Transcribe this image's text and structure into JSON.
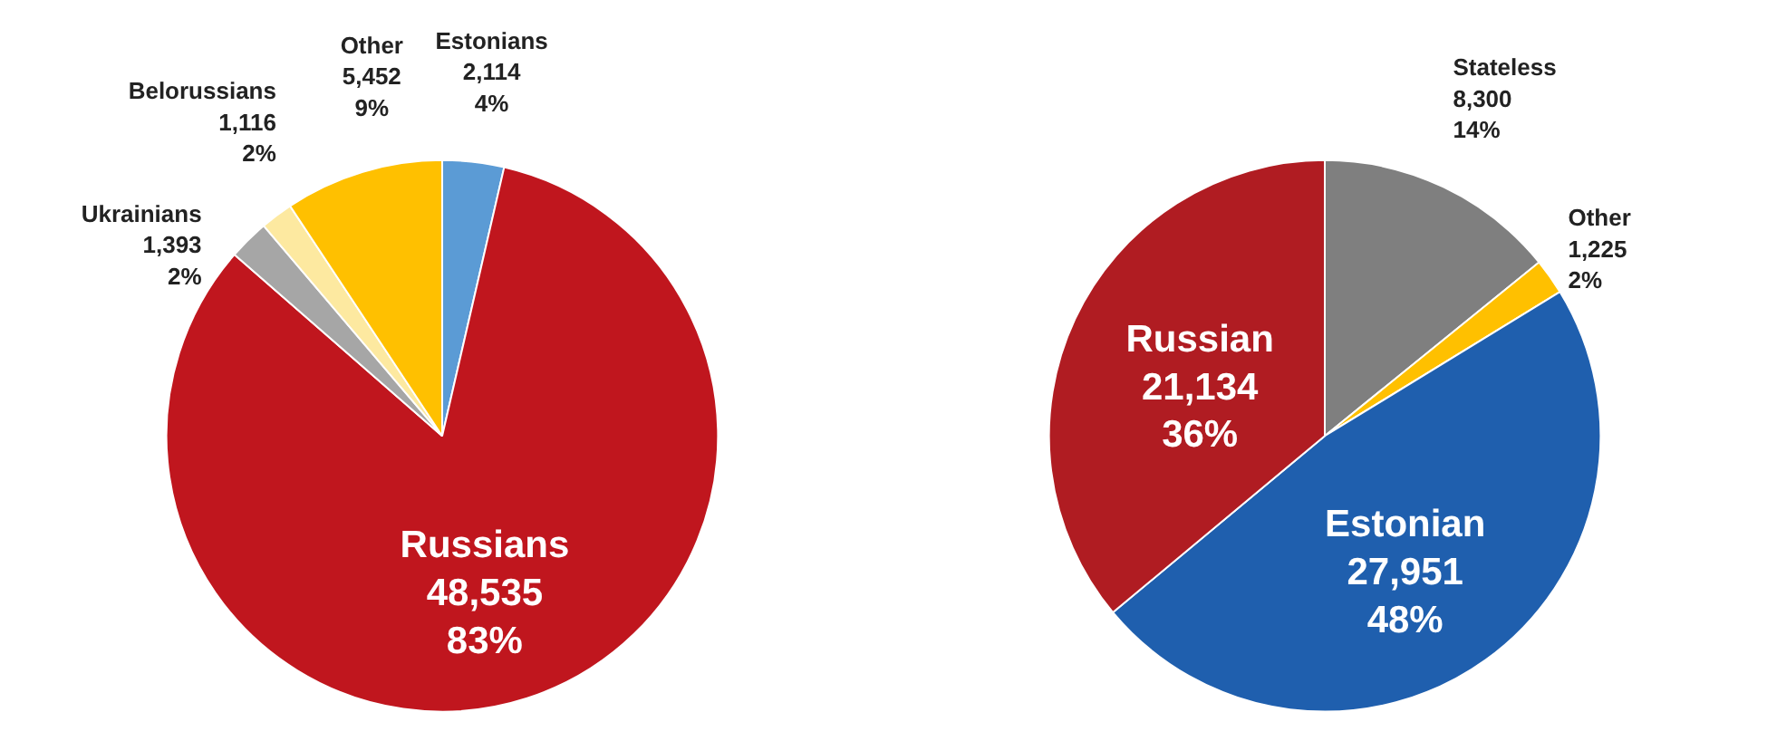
{
  "chart_data": [
    {
      "type": "pie",
      "categories": [
        "Estonians",
        "Russians",
        "Ukrainians",
        "Belorussians",
        "Other"
      ],
      "values": [
        2114,
        48535,
        1393,
        1116,
        5452
      ],
      "value_labels": [
        "2,114\n4%",
        "48,535\n83%",
        "1,393\n2%",
        "1,116\n2%",
        "5,452\n9%"
      ],
      "colors": [
        "#5b9bd5",
        "#c0161e",
        "#a6a6a6",
        "#fde9a0",
        "#ffc000"
      ]
    },
    {
      "type": "pie",
      "categories": [
        "Stateless",
        "Other",
        "Estonian",
        "Russian"
      ],
      "values": [
        8300,
        1225,
        27951,
        21134
      ],
      "value_labels": [
        "8,300\n14%",
        "1,225\n2%",
        "27,951\n48%",
        "21,134\n36%"
      ],
      "colors": [
        "#7f7f7f",
        "#ffc000",
        "#1f5fae",
        "#b01c22"
      ]
    }
  ]
}
